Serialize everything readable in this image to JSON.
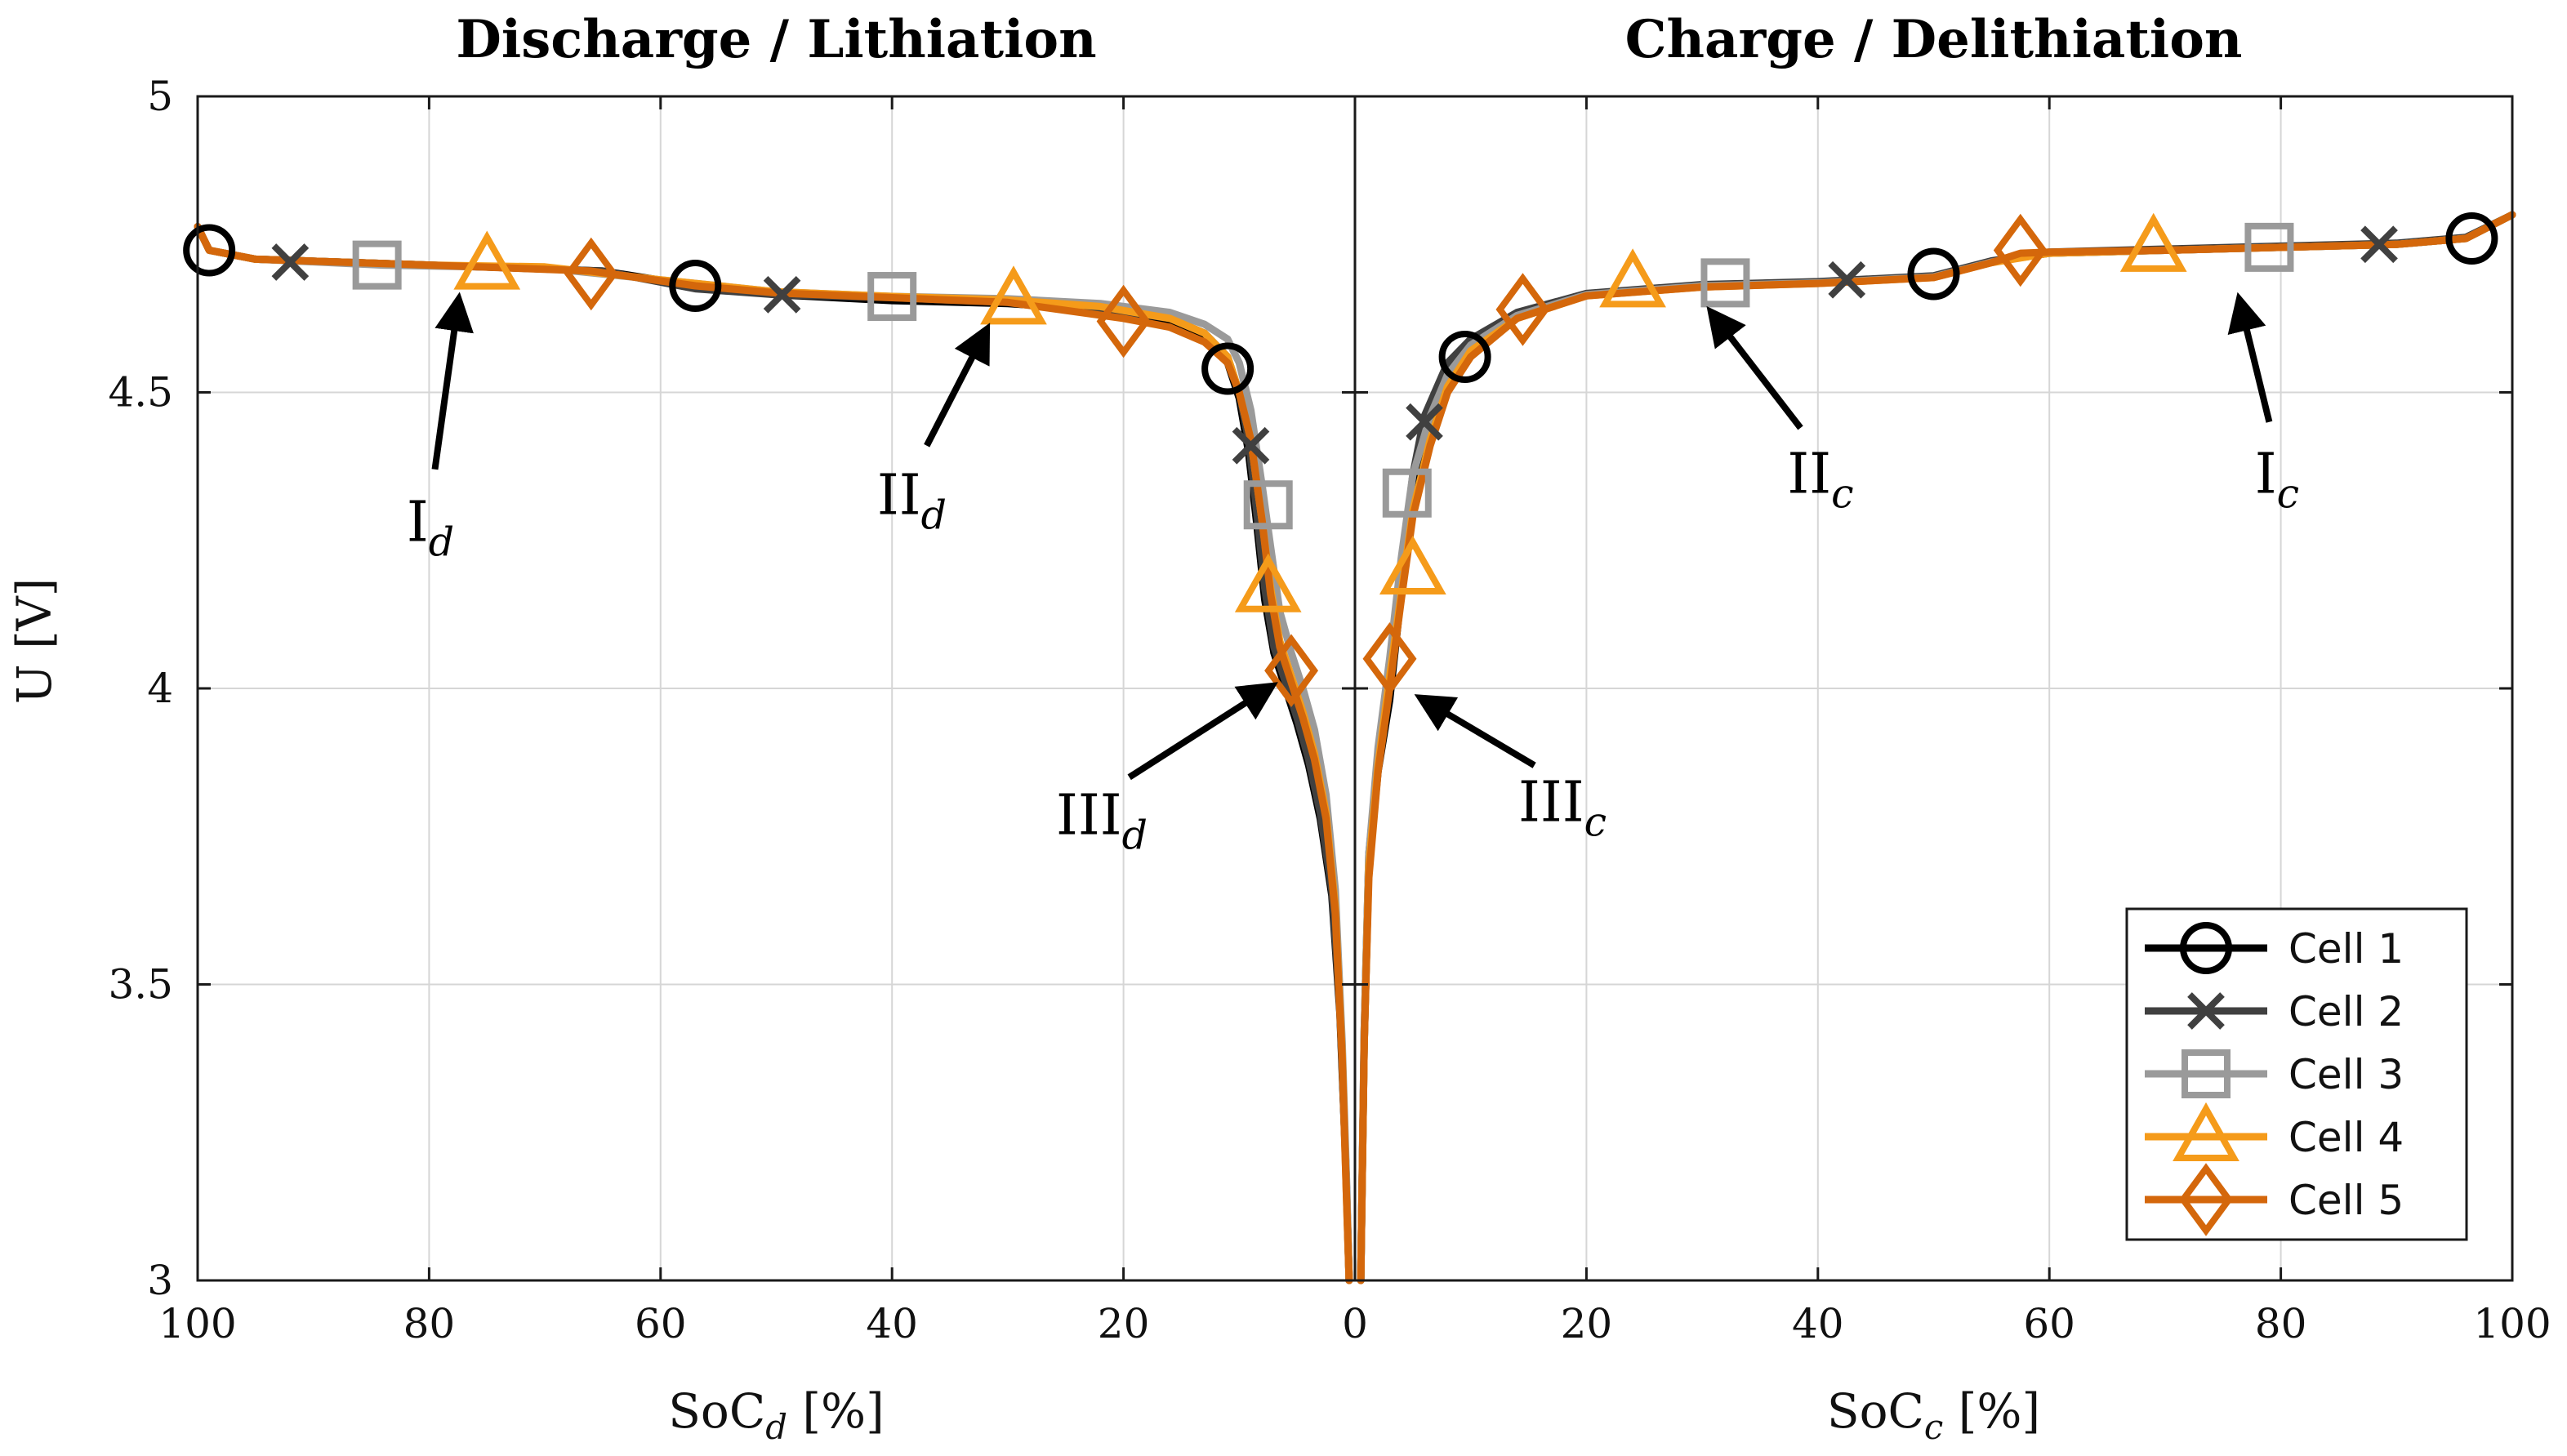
{
  "chart_data": {
    "type": "line",
    "ylabel": "U [V]",
    "ylim": [
      3,
      5
    ],
    "yticks": [
      3,
      3.5,
      4,
      4.5,
      5
    ],
    "ytick_labels": [
      "3",
      "3.5",
      "4",
      "4.5",
      "5"
    ],
    "panels": [
      {
        "title": "Discharge / Lithiation",
        "xlabel_main": "SoC",
        "xlabel_sub": "d",
        "xlabel_unit": " [%]",
        "xlim": [
          100,
          0
        ],
        "xticks": [
          100,
          80,
          60,
          40,
          20,
          0
        ],
        "xtick_labels": [
          "100",
          "80",
          "60",
          "40",
          "20",
          "0"
        ],
        "annotations": [
          {
            "label": "I",
            "sub": "d",
            "from": [
              79.5,
              4.37
            ],
            "to": [
              77.5,
              4.65
            ]
          },
          {
            "label": "II",
            "sub": "d",
            "from": [
              37.0,
              4.41
            ],
            "to": [
              32.0,
              4.6
            ]
          },
          {
            "label": "III",
            "sub": "d",
            "from": [
              19.5,
              3.85
            ],
            "to": [
              7.5,
              4.0
            ]
          }
        ]
      },
      {
        "title": "Charge / Delithiation",
        "xlabel_main": "SoC",
        "xlabel_sub": "c",
        "xlabel_unit": " [%]",
        "xlim": [
          0,
          100
        ],
        "xticks": [
          0,
          20,
          40,
          60,
          80,
          100
        ],
        "xtick_labels": [
          "0",
          "20",
          "40",
          "60",
          "80",
          "100"
        ],
        "annotations": [
          {
            "label": "II",
            "sub": "c",
            "from": [
              38.5,
              4.44
            ],
            "to": [
              31.0,
              4.63
            ]
          },
          {
            "label": "I",
            "sub": "c",
            "from": [
              79.0,
              4.45
            ],
            "to": [
              76.5,
              4.65
            ]
          },
          {
            "label": "III",
            "sub": "c",
            "from": [
              15.5,
              3.87
            ],
            "to": [
              6.0,
              3.98
            ]
          }
        ]
      }
    ],
    "series": [
      {
        "name": "Cell 1",
        "color": "#000000",
        "marker": "circle",
        "discharge": [
          [
            100,
            4.78
          ],
          [
            99,
            4.74
          ],
          [
            95,
            4.725
          ],
          [
            80,
            4.715
          ],
          [
            65,
            4.705
          ],
          [
            57,
            4.68
          ],
          [
            50,
            4.665
          ],
          [
            40,
            4.655
          ],
          [
            30,
            4.65
          ],
          [
            22,
            4.64
          ],
          [
            16,
            4.62
          ],
          [
            13,
            4.59
          ],
          [
            11,
            4.55
          ],
          [
            10,
            4.49
          ],
          [
            9.2,
            4.4
          ],
          [
            8.5,
            4.28
          ],
          [
            7.8,
            4.15
          ],
          [
            7.0,
            4.06
          ],
          [
            6.0,
            4.0
          ],
          [
            5.0,
            3.94
          ],
          [
            4.0,
            3.87
          ],
          [
            3.0,
            3.78
          ],
          [
            2.0,
            3.65
          ],
          [
            1.3,
            3.45
          ],
          [
            0.8,
            3.2
          ],
          [
            0.5,
            3.0
          ]
        ],
        "discharge_markers": [
          [
            99,
            4.74
          ],
          [
            57,
            4.68
          ],
          [
            11,
            4.54
          ]
        ],
        "charge": [
          [
            0.5,
            3.0
          ],
          [
            0.8,
            3.4
          ],
          [
            1.2,
            3.7
          ],
          [
            2.0,
            3.86
          ],
          [
            3.0,
            3.98
          ],
          [
            4.0,
            4.16
          ],
          [
            5.0,
            4.32
          ],
          [
            6.0,
            4.43
          ],
          [
            8.0,
            4.53
          ],
          [
            10,
            4.58
          ],
          [
            14,
            4.63
          ],
          [
            20,
            4.665
          ],
          [
            30,
            4.68
          ],
          [
            40,
            4.685
          ],
          [
            50,
            4.695
          ],
          [
            55,
            4.72
          ],
          [
            60,
            4.735
          ],
          [
            70,
            4.74
          ],
          [
            80,
            4.745
          ],
          [
            90,
            4.75
          ],
          [
            96,
            4.76
          ],
          [
            100,
            4.8
          ]
        ],
        "charge_markers": [
          [
            9.5,
            4.56
          ],
          [
            50,
            4.7
          ],
          [
            96.5,
            4.76
          ]
        ]
      },
      {
        "name": "Cell 2",
        "color": "#404040",
        "marker": "x",
        "discharge": [
          [
            100,
            4.78
          ],
          [
            99,
            4.74
          ],
          [
            95,
            4.725
          ],
          [
            80,
            4.715
          ],
          [
            65,
            4.705
          ],
          [
            57,
            4.675
          ],
          [
            50,
            4.665
          ],
          [
            40,
            4.66
          ],
          [
            30,
            4.652
          ],
          [
            22,
            4.642
          ],
          [
            16,
            4.625
          ],
          [
            13,
            4.6
          ],
          [
            11,
            4.56
          ],
          [
            10,
            4.5
          ],
          [
            9.2,
            4.42
          ],
          [
            8.5,
            4.3
          ],
          [
            7.8,
            4.17
          ],
          [
            7.0,
            4.07
          ],
          [
            6.0,
            4.01
          ],
          [
            5.0,
            3.95
          ],
          [
            4.0,
            3.88
          ],
          [
            3.0,
            3.79
          ],
          [
            2.0,
            3.66
          ],
          [
            1.3,
            3.46
          ],
          [
            0.8,
            3.2
          ],
          [
            0.5,
            3.0
          ]
        ],
        "discharge_markers": [
          [
            92,
            4.72
          ],
          [
            49.5,
            4.665
          ],
          [
            9,
            4.41
          ]
        ],
        "charge": [
          [
            0.5,
            3.0
          ],
          [
            0.8,
            3.42
          ],
          [
            1.2,
            3.72
          ],
          [
            2.0,
            3.88
          ],
          [
            3.0,
            4.0
          ],
          [
            4.0,
            4.2
          ],
          [
            5.0,
            4.36
          ],
          [
            6.0,
            4.46
          ],
          [
            8.0,
            4.55
          ],
          [
            10,
            4.59
          ],
          [
            14,
            4.635
          ],
          [
            20,
            4.667
          ],
          [
            30,
            4.682
          ],
          [
            40,
            4.687
          ],
          [
            50,
            4.697
          ],
          [
            55,
            4.722
          ],
          [
            60,
            4.737
          ],
          [
            70,
            4.742
          ],
          [
            80,
            4.747
          ],
          [
            90,
            4.752
          ],
          [
            96,
            4.762
          ],
          [
            100,
            4.8
          ]
        ],
        "charge_markers": [
          [
            6.0,
            4.45
          ],
          [
            42.5,
            4.69
          ],
          [
            88.5,
            4.75
          ]
        ]
      },
      {
        "name": "Cell 3",
        "color": "#9a9a9a",
        "marker": "square",
        "discharge": [
          [
            100,
            4.78
          ],
          [
            99,
            4.74
          ],
          [
            95,
            4.725
          ],
          [
            84,
            4.715
          ],
          [
            70,
            4.71
          ],
          [
            60,
            4.69
          ],
          [
            50,
            4.67
          ],
          [
            40,
            4.662
          ],
          [
            30,
            4.658
          ],
          [
            22,
            4.65
          ],
          [
            16,
            4.635
          ],
          [
            13,
            4.615
          ],
          [
            11,
            4.59
          ],
          [
            10,
            4.55
          ],
          [
            9.0,
            4.47
          ],
          [
            8.0,
            4.34
          ],
          [
            7.3,
            4.24
          ],
          [
            6.5,
            4.13
          ],
          [
            5.5,
            4.06
          ],
          [
            4.5,
            4.0
          ],
          [
            3.5,
            3.93
          ],
          [
            2.5,
            3.82
          ],
          [
            1.7,
            3.66
          ],
          [
            1.1,
            3.4
          ],
          [
            0.7,
            3.15
          ],
          [
            0.5,
            3.0
          ]
        ],
        "discharge_markers": [
          [
            84.5,
            4.715
          ],
          [
            40,
            4.662
          ],
          [
            7.5,
            4.31
          ]
        ],
        "charge": [
          [
            0.5,
            3.0
          ],
          [
            0.8,
            3.42
          ],
          [
            1.2,
            3.72
          ],
          [
            2.0,
            3.9
          ],
          [
            3.0,
            4.05
          ],
          [
            4.0,
            4.22
          ],
          [
            5.0,
            4.36
          ],
          [
            6.5,
            4.46
          ],
          [
            8.0,
            4.53
          ],
          [
            10,
            4.58
          ],
          [
            14,
            4.63
          ],
          [
            20,
            4.665
          ],
          [
            30,
            4.68
          ],
          [
            40,
            4.685
          ],
          [
            50,
            4.695
          ],
          [
            55,
            4.72
          ],
          [
            60,
            4.735
          ],
          [
            70,
            4.74
          ],
          [
            80,
            4.745
          ],
          [
            90,
            4.75
          ],
          [
            96,
            4.76
          ],
          [
            100,
            4.8
          ]
        ],
        "charge_markers": [
          [
            4.5,
            4.33
          ],
          [
            32,
            4.685
          ],
          [
            79,
            4.745
          ]
        ]
      },
      {
        "name": "Cell 4",
        "color": "#f59b1a",
        "marker": "triangle",
        "discharge": [
          [
            100,
            4.78
          ],
          [
            99,
            4.74
          ],
          [
            95,
            4.725
          ],
          [
            80,
            4.715
          ],
          [
            70,
            4.712
          ],
          [
            60,
            4.69
          ],
          [
            50,
            4.67
          ],
          [
            40,
            4.662
          ],
          [
            30,
            4.656
          ],
          [
            22,
            4.645
          ],
          [
            16,
            4.625
          ],
          [
            13,
            4.6
          ],
          [
            11,
            4.56
          ],
          [
            10,
            4.5
          ],
          [
            9.0,
            4.42
          ],
          [
            8.0,
            4.28
          ],
          [
            7.3,
            4.17
          ],
          [
            6.5,
            4.08
          ],
          [
            5.5,
            4.02
          ],
          [
            4.5,
            3.96
          ],
          [
            3.5,
            3.89
          ],
          [
            2.5,
            3.79
          ],
          [
            1.7,
            3.63
          ],
          [
            1.1,
            3.38
          ],
          [
            0.7,
            3.12
          ],
          [
            0.5,
            3.0
          ]
        ],
        "discharge_markers": [
          [
            75,
            4.715
          ],
          [
            29.5,
            4.656
          ],
          [
            7.5,
            4.17
          ]
        ],
        "charge": [
          [
            0.5,
            3.0
          ],
          [
            0.8,
            3.4
          ],
          [
            1.2,
            3.7
          ],
          [
            2.0,
            3.87
          ],
          [
            3.0,
            4.02
          ],
          [
            4.0,
            4.16
          ],
          [
            5.0,
            4.3
          ],
          [
            6.5,
            4.42
          ],
          [
            8.0,
            4.51
          ],
          [
            10,
            4.57
          ],
          [
            14,
            4.625
          ],
          [
            20,
            4.663
          ],
          [
            30,
            4.678
          ],
          [
            40,
            4.684
          ],
          [
            50,
            4.694
          ],
          [
            55,
            4.719
          ],
          [
            60,
            4.735
          ],
          [
            70,
            4.74
          ],
          [
            80,
            4.745
          ],
          [
            90,
            4.75
          ],
          [
            96,
            4.76
          ],
          [
            100,
            4.8
          ]
        ],
        "charge_markers": [
          [
            5.0,
            4.2
          ],
          [
            24,
            4.685
          ],
          [
            69,
            4.745
          ]
        ]
      },
      {
        "name": "Cell 5",
        "color": "#d4670b",
        "marker": "diamond",
        "discharge": [
          [
            100,
            4.78
          ],
          [
            99,
            4.74
          ],
          [
            95,
            4.725
          ],
          [
            80,
            4.715
          ],
          [
            66,
            4.705
          ],
          [
            57,
            4.68
          ],
          [
            50,
            4.668
          ],
          [
            40,
            4.66
          ],
          [
            30,
            4.652
          ],
          [
            20,
            4.625
          ],
          [
            16,
            4.61
          ],
          [
            13,
            4.585
          ],
          [
            11,
            4.55
          ],
          [
            10,
            4.5
          ],
          [
            9.0,
            4.42
          ],
          [
            8.0,
            4.28
          ],
          [
            7.3,
            4.16
          ],
          [
            6.5,
            4.07
          ],
          [
            5.5,
            4.01
          ],
          [
            4.5,
            3.95
          ],
          [
            3.5,
            3.88
          ],
          [
            2.5,
            3.78
          ],
          [
            1.7,
            3.62
          ],
          [
            1.1,
            3.37
          ],
          [
            0.7,
            3.12
          ],
          [
            0.5,
            3.0
          ]
        ],
        "discharge_markers": [
          [
            66,
            4.7
          ],
          [
            20,
            4.62
          ],
          [
            5.5,
            4.03
          ]
        ],
        "charge": [
          [
            0.5,
            3.0
          ],
          [
            0.8,
            3.4
          ],
          [
            1.2,
            3.68
          ],
          [
            2.0,
            3.86
          ],
          [
            3.0,
            4.0
          ],
          [
            4.0,
            4.15
          ],
          [
            5.0,
            4.29
          ],
          [
            6.5,
            4.41
          ],
          [
            8.0,
            4.5
          ],
          [
            10,
            4.56
          ],
          [
            14,
            4.625
          ],
          [
            20,
            4.663
          ],
          [
            30,
            4.678
          ],
          [
            40,
            4.684
          ],
          [
            50,
            4.694
          ],
          [
            55,
            4.719
          ],
          [
            57.5,
            4.735
          ],
          [
            60,
            4.737
          ],
          [
            70,
            4.74
          ],
          [
            80,
            4.745
          ],
          [
            90,
            4.75
          ],
          [
            96,
            4.76
          ],
          [
            100,
            4.8
          ]
        ],
        "charge_markers": [
          [
            3.0,
            4.05
          ],
          [
            14.5,
            4.64
          ],
          [
            57.5,
            4.74
          ]
        ]
      }
    ]
  }
}
